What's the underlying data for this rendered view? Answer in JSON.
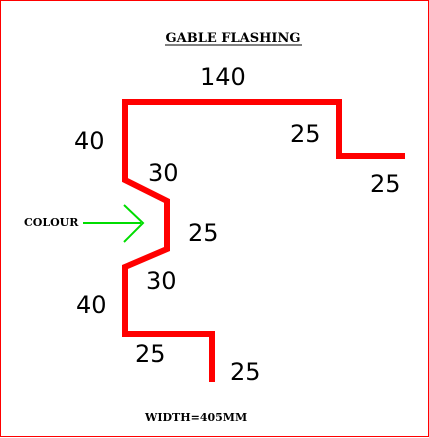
{
  "title": "GABLE FLASHING",
  "colour_label": "COLOUR",
  "width_note": "WIDTH=405MM",
  "dimensions": {
    "top": "140",
    "right_drop": "25",
    "right_return": "25",
    "upper_left": "40",
    "upper_bevel": "30",
    "notch": "25",
    "lower_bevel": "30",
    "lower_left": "40",
    "bottom_run": "25",
    "bottom_drip": "25"
  },
  "colors": {
    "flashing": "#ff0000",
    "arrow": "#00dd00",
    "text": "#000000",
    "border": "#ff0000"
  }
}
